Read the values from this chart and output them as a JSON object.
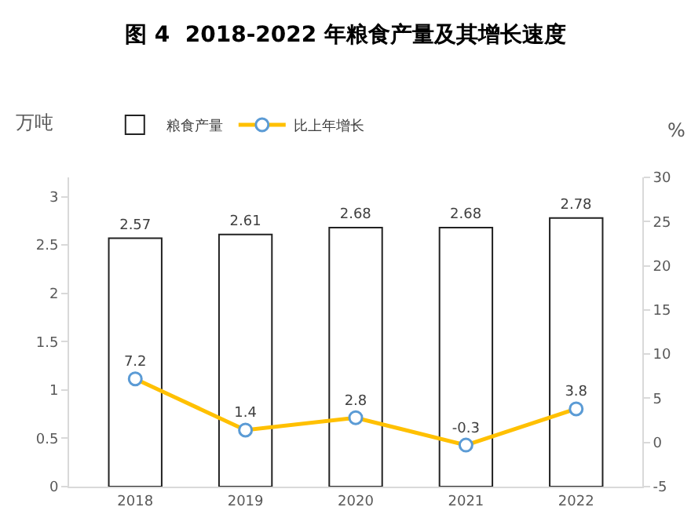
{
  "chart_data": {
    "type": "bar",
    "title": "图 4  2018-2022 年粮食产量及其增长速度",
    "ylabel": "万吨",
    "y2label": "%",
    "categories": [
      "2018",
      "2019",
      "2020",
      "2021",
      "2022"
    ],
    "series": [
      {
        "name": "粮食产量",
        "color": "#ffffff",
        "values": [
          2.57,
          2.61,
          2.68,
          2.68,
          2.78
        ]
      },
      {
        "name": "比上年增长",
        "type": "line",
        "axis": "y2",
        "color": "#ffc000",
        "values": [
          7.2,
          1.4,
          2.8,
          -0.3,
          3.8
        ]
      }
    ],
    "ylim": [
      0,
      3.2
    ],
    "yticks": [
      0,
      0.5,
      1,
      1.5,
      2,
      2.5,
      3
    ],
    "y2lim": [
      -5,
      30
    ],
    "y2ticks": [
      -5,
      0,
      5,
      10,
      15,
      20,
      25,
      30
    ],
    "data_labels": true,
    "legend": "top left",
    "marker": "circle"
  }
}
